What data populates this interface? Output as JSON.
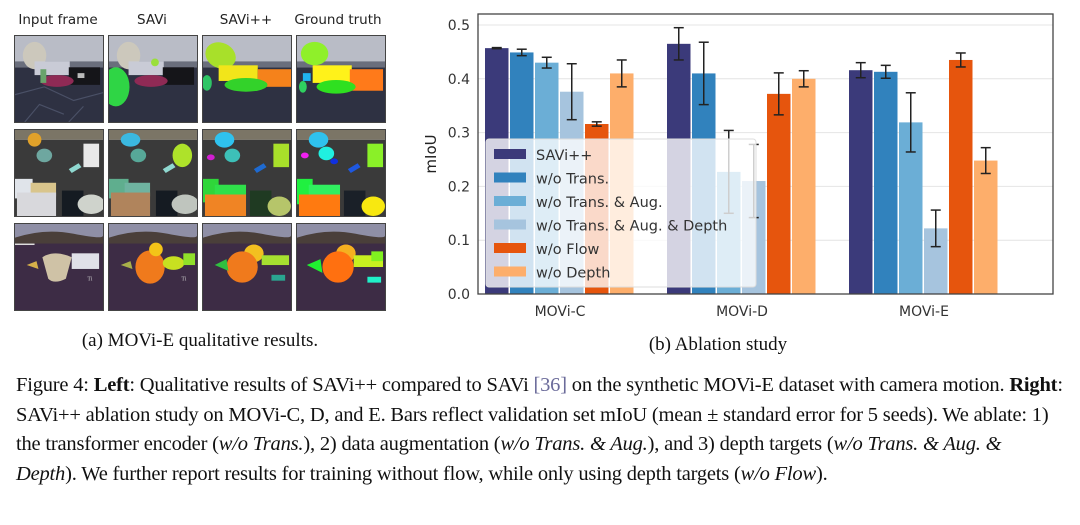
{
  "left_panel": {
    "column_headers": [
      "Input frame",
      "SAVi",
      "SAVi++",
      "Ground truth"
    ],
    "rows": [
      {
        "scene": "scene-1",
        "cells": [
          "input-frame",
          "savi",
          "savi-plus-plus",
          "ground-truth"
        ]
      },
      {
        "scene": "scene-2",
        "cells": [
          "input-frame",
          "savi",
          "savi-plus-plus",
          "ground-truth"
        ]
      },
      {
        "scene": "scene-3",
        "cells": [
          "input-frame",
          "savi",
          "savi-plus-plus",
          "ground-truth"
        ]
      }
    ],
    "subcaption": "(a) MOVi-E qualitative results."
  },
  "right_panel": {
    "subcaption": "(b) Ablation study"
  },
  "chart_data": {
    "type": "bar",
    "title": "",
    "xlabel": "",
    "ylabel": "mIoU",
    "ylim": [
      0.0,
      0.52
    ],
    "yticks": [
      0.0,
      0.1,
      0.2,
      0.3,
      0.4,
      0.5
    ],
    "ytick_labels": [
      "0.0",
      "0.1",
      "0.2",
      "0.3",
      "0.4",
      "0.5"
    ],
    "grid": true,
    "legend_position": "lower-left",
    "categories": [
      "MOVi-C",
      "MOVi-D",
      "MOVi-E"
    ],
    "series": [
      {
        "name": "SAVi++",
        "color": "#3b3a7a",
        "values": [
          0.457,
          0.465,
          0.416
        ],
        "errors": [
          0.001,
          0.03,
          0.014
        ]
      },
      {
        "name": "w/o Trans.",
        "color": "#3182bd",
        "values": [
          0.449,
          0.41,
          0.413
        ],
        "errors": [
          0.006,
          0.058,
          0.012
        ]
      },
      {
        "name": "w/o Trans. & Aug.",
        "color": "#6baed6",
        "values": [
          0.43,
          0.227,
          0.319
        ],
        "errors": [
          0.01,
          0.077,
          0.055
        ]
      },
      {
        "name": "w/o Trans. & Aug. & Depth",
        "color": "#a6c4de",
        "values": [
          0.376,
          0.21,
          0.122
        ],
        "errors": [
          0.052,
          0.068,
          0.034
        ]
      },
      {
        "name": "w/o Flow",
        "color": "#e6550d",
        "values": [
          0.316,
          0.372,
          0.435
        ],
        "errors": [
          0.004,
          0.039,
          0.013
        ]
      },
      {
        "name": "w/o Depth",
        "color": "#fdae6b",
        "values": [
          0.41,
          0.4,
          0.248
        ],
        "errors": [
          0.025,
          0.015,
          0.024
        ]
      }
    ]
  },
  "caption": {
    "figure_label": "Figure 4: ",
    "left_label": "Left",
    "part1": ": Qualitative results of SAVi++ compared to SAVi ",
    "citation": "[36]",
    "part2": " on the synthetic MOVi-E dataset with camera motion. ",
    "right_label": "Right",
    "part3": ": SAVi++ ablation study on MOVi-C, D, and E. Bars reflect validation set mIoU (mean ± standard error for 5 seeds). We ablate: 1) the transformer encoder (",
    "it1": "w/o Trans.",
    "part4": "), 2) data augmentation (",
    "it2": "w/o Trans. & Aug.",
    "part5": "), and 3) depth targets (",
    "it3": "w/o Trans. & Aug. & Depth",
    "part6": "). We further report results for training without flow, while only using depth targets (",
    "it4": "w/o Flow",
    "part7": ")."
  }
}
